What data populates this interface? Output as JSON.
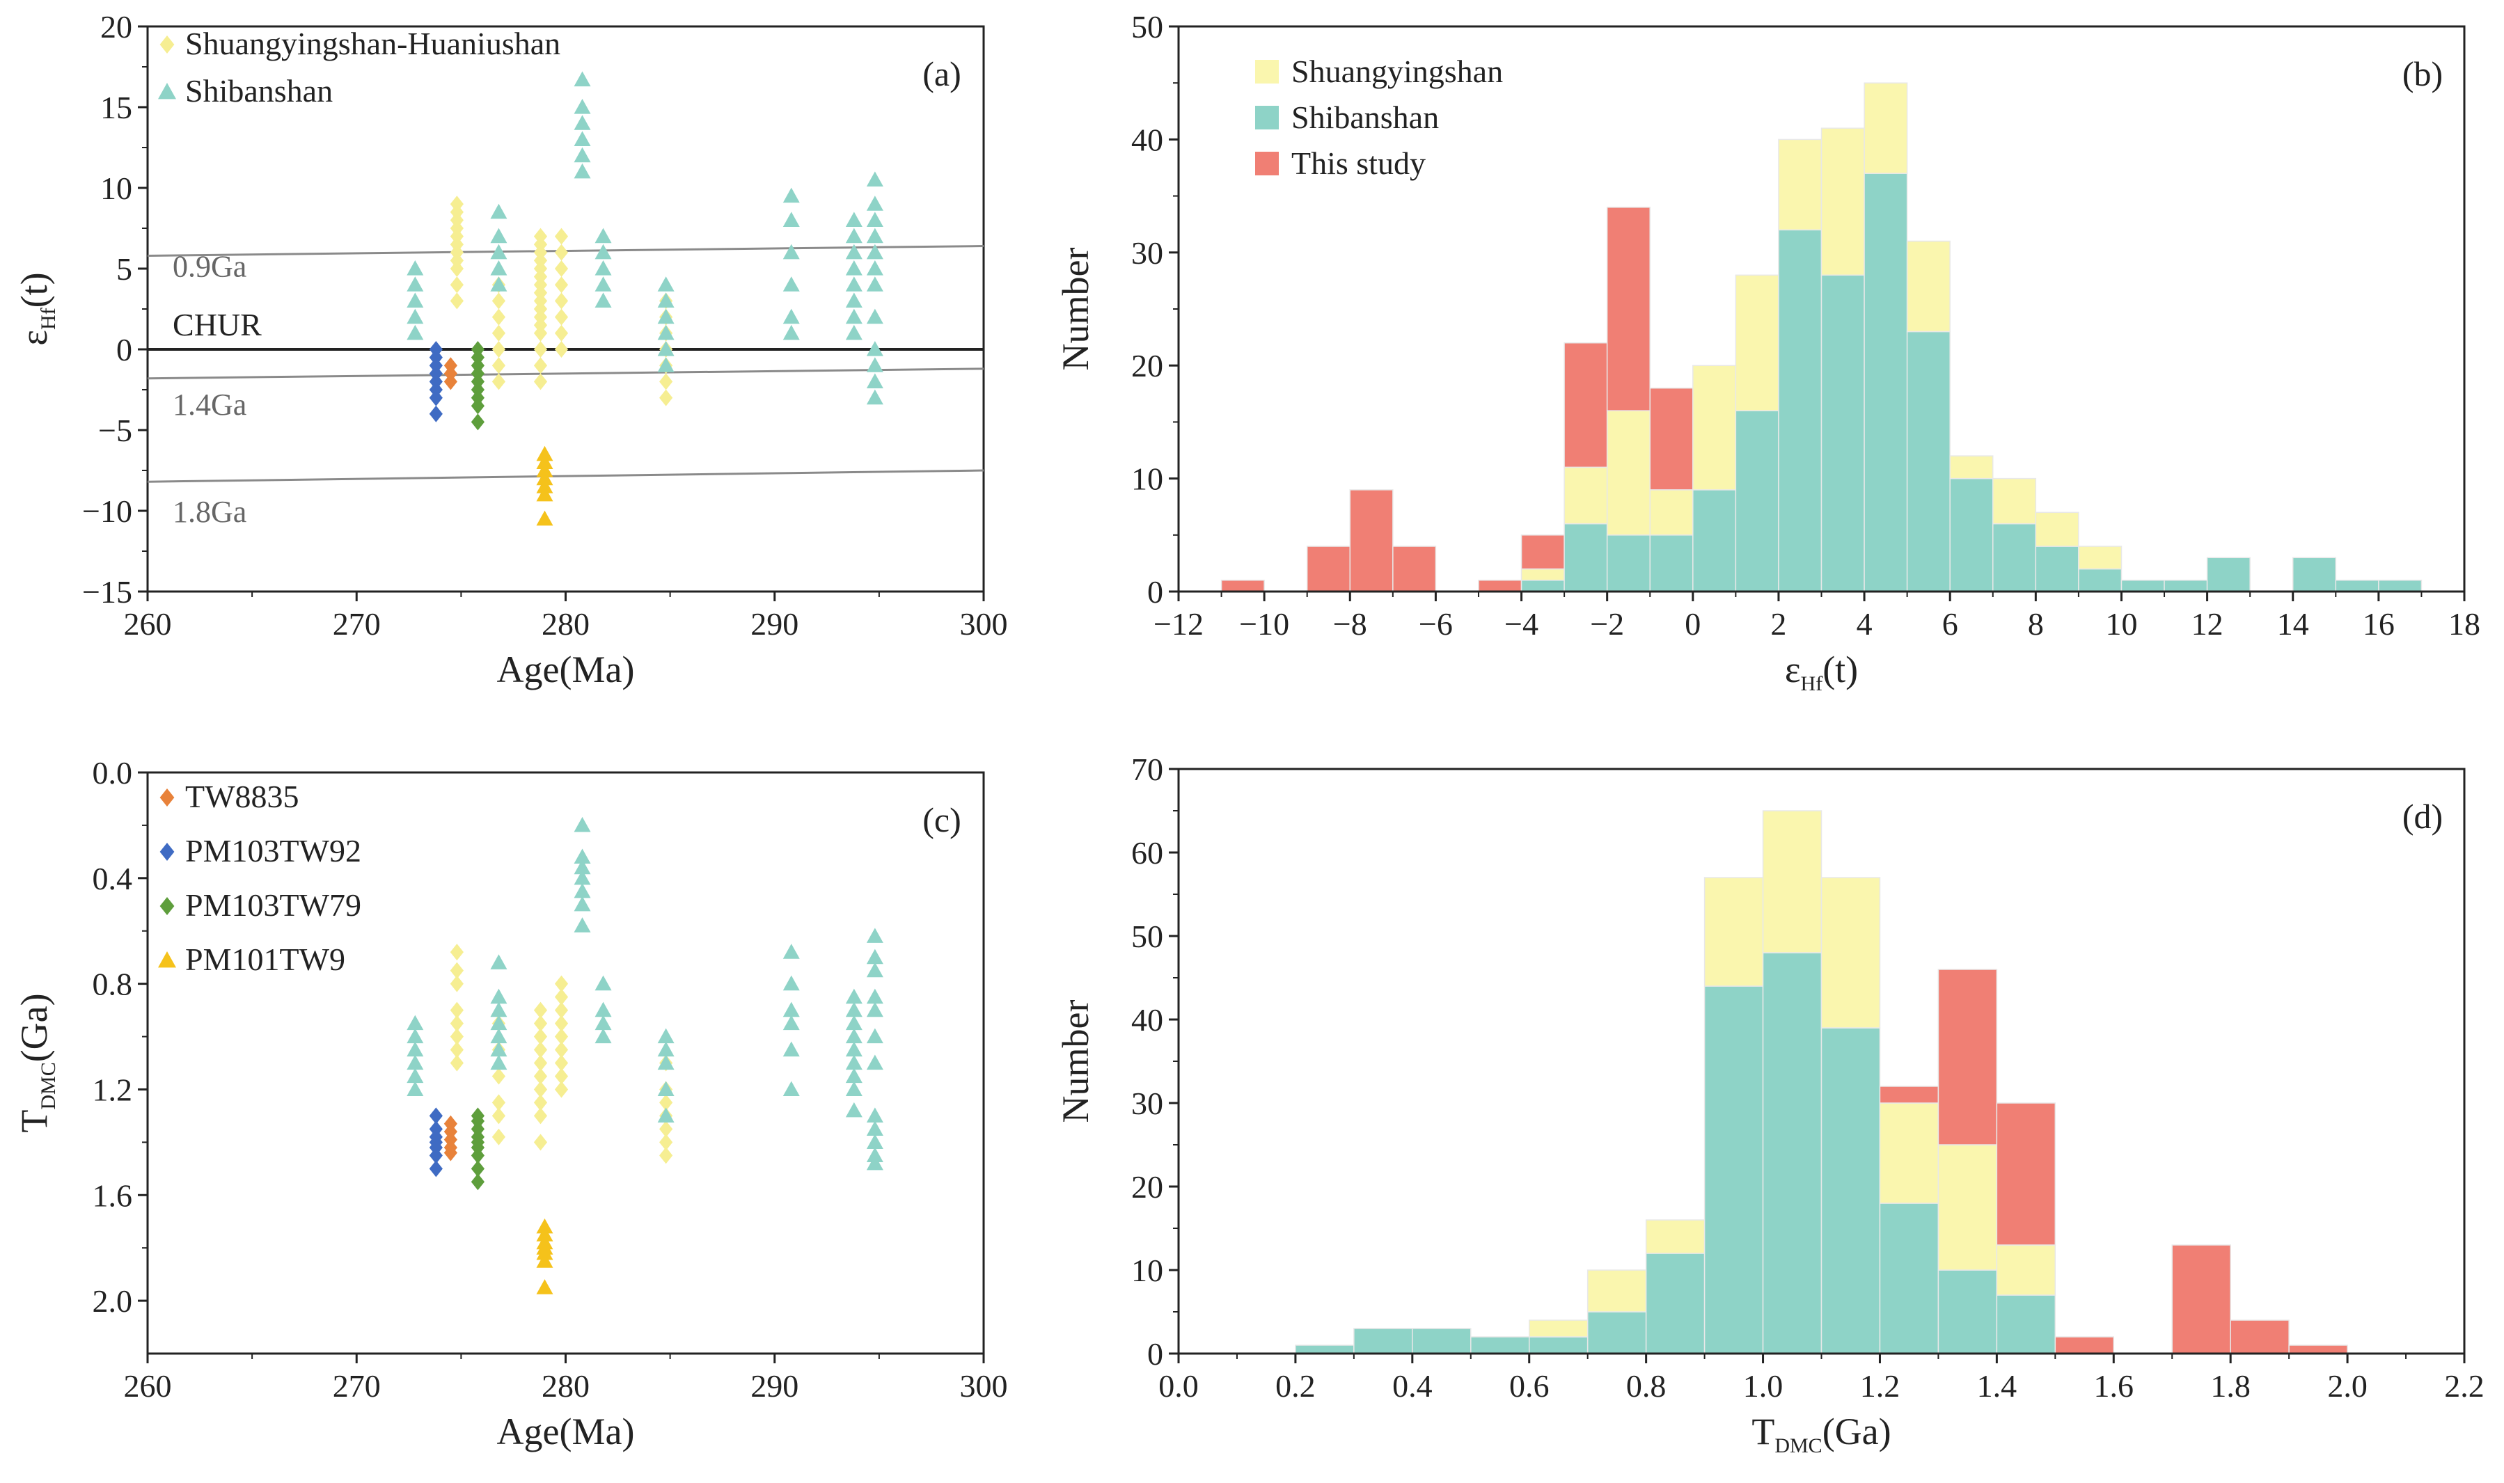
{
  "colors": {
    "shuang": "#FAF6AE",
    "shuang_marker": "#F6EE92",
    "shiban": "#8ED3C7",
    "study": "#F07F74",
    "tw8835": "#E8823A",
    "pm103tw92": "#3F6BC3",
    "pm103tw79": "#5E9E3C",
    "pm101tw9": "#F5C21B",
    "ref_line": "#8A8A8A",
    "axis": "#222222"
  },
  "chart_data": [
    {
      "id": "a",
      "type": "scatter",
      "tag": "(a)",
      "xlabel": "Age(Ma)",
      "ylabel": {
        "main": "ε",
        "sub": "Hf",
        "tail": "(t)"
      },
      "xlim": [
        260,
        300
      ],
      "ylim": [
        -15,
        20
      ],
      "xticks": [
        "260",
        "270",
        "280",
        "290",
        "300"
      ],
      "yticks": [
        "−15",
        "−10",
        "−5",
        "0",
        "5",
        "10",
        "15",
        "20"
      ],
      "legend": [
        "Shuangyingshan-Huaniushan",
        "Shibanshan"
      ],
      "reference_lines": [
        {
          "name": "0.9Ga",
          "y_at_260": 5.8,
          "y_at_300": 6.4
        },
        {
          "name": "CHUR",
          "y_at_260": 0,
          "y_at_300": 0
        },
        {
          "name": "1.4Ga",
          "y_at_260": -1.8,
          "y_at_300": -1.2
        },
        {
          "name": "1.8Ga",
          "y_at_260": -8.2,
          "y_at_300": -7.5
        }
      ],
      "series": [
        {
          "name": "Shuangyingshan-Huaniushan",
          "marker": "diamond",
          "groups": [
            {
              "x": 274.8,
              "y": [
                3,
                4,
                5,
                5.5,
                6,
                6.5,
                7,
                7.5,
                8,
                8.5,
                9
              ]
            },
            {
              "x": 276.8,
              "y": [
                -2,
                -1,
                0,
                1,
                2,
                3,
                4
              ]
            },
            {
              "x": 278.8,
              "y": [
                -2,
                -1,
                0,
                1,
                1.5,
                2,
                2.5,
                3,
                3.5,
                4,
                4.5,
                5,
                5.5,
                6,
                6.5,
                7
              ]
            },
            {
              "x": 279.8,
              "y": [
                0,
                1,
                2,
                3,
                4,
                5,
                6,
                7
              ]
            },
            {
              "x": 284.8,
              "y": [
                -3,
                -2,
                -1,
                0,
                1,
                2,
                3
              ]
            }
          ]
        },
        {
          "name": "Shibanshan",
          "marker": "triangle",
          "groups": [
            {
              "x": 272.8,
              "y": [
                1,
                2,
                3,
                4,
                5
              ]
            },
            {
              "x": 276.8,
              "y": [
                4,
                5,
                6,
                7,
                8.5
              ]
            },
            {
              "x": 280.8,
              "y": [
                11,
                12,
                13,
                14,
                15,
                16.7
              ]
            },
            {
              "x": 281.8,
              "y": [
                3,
                4,
                5,
                6,
                7
              ]
            },
            {
              "x": 284.8,
              "y": [
                -1,
                0,
                1,
                2,
                3,
                4
              ]
            },
            {
              "x": 290.8,
              "y": [
                1,
                2,
                4,
                6,
                8,
                9.5
              ]
            },
            {
              "x": 293.8,
              "y": [
                1,
                2,
                3,
                4,
                5,
                6,
                7,
                8
              ]
            },
            {
              "x": 294.8,
              "y": [
                -3,
                -2,
                -1,
                0,
                2,
                4,
                5,
                6,
                7,
                8,
                9,
                10.5
              ]
            }
          ]
        },
        {
          "name": "TW8835",
          "marker": "diamond",
          "groups": [
            {
              "x": 274.5,
              "y": [
                -2,
                -1.5,
                -1
              ]
            }
          ]
        },
        {
          "name": "PM103TW92",
          "marker": "diamond",
          "groups": [
            {
              "x": 273.8,
              "y": [
                -4,
                -3,
                -2.5,
                -2,
                -1.5,
                -1,
                -0.5,
                0
              ]
            }
          ]
        },
        {
          "name": "PM103TW79",
          "marker": "diamond",
          "groups": [
            {
              "x": 275.8,
              "y": [
                -4.5,
                -3.5,
                -3,
                -2.5,
                -2,
                -1.5,
                -1,
                -0.5,
                0
              ]
            }
          ]
        },
        {
          "name": "PM101TW9",
          "marker": "triangle",
          "groups": [
            {
              "x": 279.0,
              "y": [
                -10.5,
                -9,
                -8.5,
                -8,
                -7.5,
                -7,
                -6.5
              ]
            }
          ]
        }
      ]
    },
    {
      "id": "b",
      "type": "bar",
      "stacked": true,
      "tag": "(b)",
      "xlabel": {
        "main": "ε",
        "sub": "Hf",
        "tail": "(t)"
      },
      "ylabel": "Number",
      "xlim": [
        -12,
        18
      ],
      "ylim": [
        0,
        50
      ],
      "bin_width": 1,
      "xticks": [
        "−12",
        "−10",
        "−8",
        "−6",
        "−4",
        "−2",
        "0",
        "2",
        "4",
        "6",
        "8",
        "10",
        "12",
        "14",
        "16",
        "18"
      ],
      "yticks": [
        "0",
        "10",
        "20",
        "30",
        "40",
        "50"
      ],
      "legend": [
        "Shuangyingshan",
        "Shibanshan",
        "This study"
      ],
      "bins": [
        {
          "start": -11,
          "shiban": 0,
          "shuang": 0,
          "study": 1
        },
        {
          "start": -9,
          "shiban": 0,
          "shuang": 0,
          "study": 4
        },
        {
          "start": -8,
          "shiban": 0,
          "shuang": 0,
          "study": 9
        },
        {
          "start": -7,
          "shiban": 0,
          "shuang": 0,
          "study": 4
        },
        {
          "start": -5,
          "shiban": 0,
          "shuang": 0,
          "study": 1
        },
        {
          "start": -4,
          "shiban": 1,
          "shuang": 1,
          "study": 3
        },
        {
          "start": -3,
          "shiban": 6,
          "shuang": 5,
          "study": 11
        },
        {
          "start": -2,
          "shiban": 5,
          "shuang": 11,
          "study": 18
        },
        {
          "start": -1,
          "shiban": 5,
          "shuang": 4,
          "study": 9
        },
        {
          "start": 0,
          "shiban": 9,
          "shuang": 11,
          "study": 0
        },
        {
          "start": 1,
          "shiban": 16,
          "shuang": 12,
          "study": 0
        },
        {
          "start": 2,
          "shiban": 32,
          "shuang": 8,
          "study": 0
        },
        {
          "start": 3,
          "shiban": 28,
          "shuang": 13,
          "study": 0
        },
        {
          "start": 4,
          "shiban": 37,
          "shuang": 8,
          "study": 0
        },
        {
          "start": 5,
          "shiban": 23,
          "shuang": 8,
          "study": 0
        },
        {
          "start": 6,
          "shiban": 10,
          "shuang": 2,
          "study": 0
        },
        {
          "start": 7,
          "shiban": 6,
          "shuang": 4,
          "study": 0
        },
        {
          "start": 8,
          "shiban": 4,
          "shuang": 3,
          "study": 0
        },
        {
          "start": 9,
          "shiban": 2,
          "shuang": 2,
          "study": 0
        },
        {
          "start": 10,
          "shiban": 1,
          "shuang": 0,
          "study": 0
        },
        {
          "start": 11,
          "shiban": 1,
          "shuang": 0,
          "study": 0
        },
        {
          "start": 12,
          "shiban": 3,
          "shuang": 0,
          "study": 0
        },
        {
          "start": 14,
          "shiban": 3,
          "shuang": 0,
          "study": 0
        },
        {
          "start": 15,
          "shiban": 1,
          "shuang": 0,
          "study": 0
        },
        {
          "start": 16,
          "shiban": 1,
          "shuang": 0,
          "study": 0
        }
      ]
    },
    {
      "id": "c",
      "type": "scatter",
      "tag": "(c)",
      "xlabel": "Age(Ma)",
      "ylabel": {
        "main": "T",
        "sub": "DMC",
        "tail": "(Ga)"
      },
      "xlim": [
        260,
        300
      ],
      "ylim": [
        0.0,
        2.2
      ],
      "y_inverted": true,
      "xticks": [
        "260",
        "270",
        "280",
        "290",
        "300"
      ],
      "yticks": [
        "0.0",
        "0.4",
        "0.8",
        "1.2",
        "1.6",
        "2.0"
      ],
      "legend": [
        "TW8835",
        "PM103TW92",
        "PM103TW79",
        "PM101TW9"
      ],
      "series": [
        {
          "name": "Shuangyingshan-Huaniushan",
          "marker": "diamond",
          "groups": [
            {
              "x": 274.8,
              "y": [
                0.68,
                0.75,
                0.8,
                0.9,
                0.95,
                1.0,
                1.05,
                1.1
              ]
            },
            {
              "x": 276.8,
              "y": [
                0.95,
                1.05,
                1.15,
                1.25,
                1.3,
                1.38
              ]
            },
            {
              "x": 278.8,
              "y": [
                0.9,
                0.95,
                1.0,
                1.05,
                1.1,
                1.15,
                1.2,
                1.25,
                1.3,
                1.4
              ]
            },
            {
              "x": 279.8,
              "y": [
                0.8,
                0.85,
                0.9,
                0.95,
                1.0,
                1.05,
                1.1,
                1.15,
                1.2
              ]
            },
            {
              "x": 284.8,
              "y": [
                1.1,
                1.2,
                1.25,
                1.3,
                1.35,
                1.4,
                1.45
              ]
            }
          ]
        },
        {
          "name": "Shibanshan",
          "marker": "triangle",
          "groups": [
            {
              "x": 272.8,
              "y": [
                0.95,
                1.0,
                1.05,
                1.1,
                1.15,
                1.2
              ]
            },
            {
              "x": 276.8,
              "y": [
                0.72,
                0.85,
                0.9,
                0.95,
                1.0,
                1.05,
                1.1
              ]
            },
            {
              "x": 280.8,
              "y": [
                0.2,
                0.32,
                0.36,
                0.4,
                0.45,
                0.5,
                0.58
              ]
            },
            {
              "x": 281.8,
              "y": [
                0.8,
                0.9,
                0.95,
                1.0
              ]
            },
            {
              "x": 284.8,
              "y": [
                1.0,
                1.05,
                1.1,
                1.2,
                1.3
              ]
            },
            {
              "x": 290.8,
              "y": [
                0.68,
                0.8,
                0.9,
                0.95,
                1.05,
                1.2
              ]
            },
            {
              "x": 293.8,
              "y": [
                0.85,
                0.9,
                0.95,
                1.0,
                1.05,
                1.1,
                1.15,
                1.2,
                1.28
              ]
            },
            {
              "x": 294.8,
              "y": [
                0.62,
                0.7,
                0.75,
                0.85,
                0.9,
                1.0,
                1.1,
                1.3,
                1.35,
                1.4,
                1.45,
                1.48
              ]
            }
          ]
        },
        {
          "name": "TW8835",
          "marker": "diamond",
          "groups": [
            {
              "x": 274.5,
              "y": [
                1.33,
                1.36,
                1.39,
                1.42,
                1.44
              ]
            }
          ]
        },
        {
          "name": "PM103TW92",
          "marker": "diamond",
          "groups": [
            {
              "x": 273.8,
              "y": [
                1.3,
                1.35,
                1.38,
                1.4,
                1.42,
                1.45,
                1.5
              ]
            }
          ]
        },
        {
          "name": "PM103TW79",
          "marker": "diamond",
          "groups": [
            {
              "x": 275.8,
              "y": [
                1.3,
                1.32,
                1.35,
                1.38,
                1.4,
                1.42,
                1.45,
                1.5,
                1.55
              ]
            }
          ]
        },
        {
          "name": "PM101TW9",
          "marker": "triangle",
          "groups": [
            {
              "x": 279.0,
              "y": [
                1.72,
                1.75,
                1.78,
                1.8,
                1.82,
                1.85,
                1.95
              ]
            }
          ]
        }
      ]
    },
    {
      "id": "d",
      "type": "bar",
      "stacked": true,
      "tag": "(d)",
      "xlabel": {
        "main": "T",
        "sub": "DMC",
        "tail": "(Ga)"
      },
      "ylabel": "Number",
      "xlim": [
        0.0,
        2.2
      ],
      "ylim": [
        0,
        70
      ],
      "bin_width": 0.1,
      "xticks": [
        "0.0",
        "0.2",
        "0.4",
        "0.6",
        "0.8",
        "1.0",
        "1.2",
        "1.4",
        "1.6",
        "1.8",
        "2.0",
        "2.2"
      ],
      "yticks": [
        "0",
        "10",
        "20",
        "30",
        "40",
        "50",
        "60",
        "70"
      ],
      "bins": [
        {
          "start": 0.2,
          "shiban": 1,
          "shuang": 0,
          "study": 0
        },
        {
          "start": 0.3,
          "shiban": 3,
          "shuang": 0,
          "study": 0
        },
        {
          "start": 0.4,
          "shiban": 3,
          "shuang": 0,
          "study": 0
        },
        {
          "start": 0.5,
          "shiban": 2,
          "shuang": 0,
          "study": 0
        },
        {
          "start": 0.6,
          "shiban": 2,
          "shuang": 2,
          "study": 0
        },
        {
          "start": 0.7,
          "shiban": 5,
          "shuang": 5,
          "study": 0
        },
        {
          "start": 0.8,
          "shiban": 12,
          "shuang": 4,
          "study": 0
        },
        {
          "start": 0.9,
          "shiban": 44,
          "shuang": 13,
          "study": 0
        },
        {
          "start": 1.0,
          "shiban": 48,
          "shuang": 17,
          "study": 0
        },
        {
          "start": 1.1,
          "shiban": 39,
          "shuang": 18,
          "study": 0
        },
        {
          "start": 1.2,
          "shiban": 18,
          "shuang": 12,
          "study": 2
        },
        {
          "start": 1.3,
          "shiban": 10,
          "shuang": 15,
          "study": 21
        },
        {
          "start": 1.4,
          "shiban": 7,
          "shuang": 6,
          "study": 17
        },
        {
          "start": 1.5,
          "shiban": 0,
          "shuang": 0,
          "study": 2
        },
        {
          "start": 1.7,
          "shiban": 0,
          "shuang": 0,
          "study": 13
        },
        {
          "start": 1.8,
          "shiban": 0,
          "shuang": 0,
          "study": 4
        },
        {
          "start": 1.9,
          "shiban": 0,
          "shuang": 0,
          "study": 1
        }
      ]
    }
  ]
}
